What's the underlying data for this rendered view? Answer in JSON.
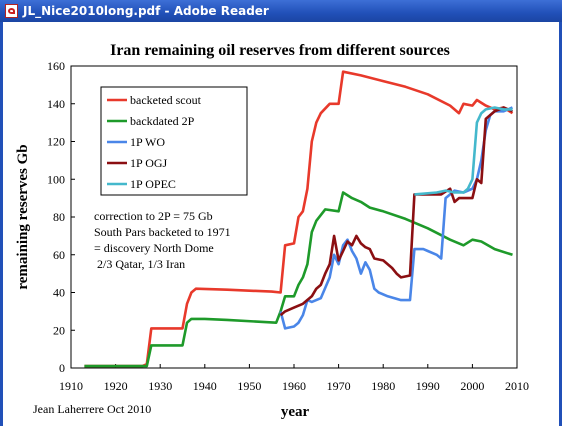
{
  "window": {
    "title": "JL_Nice2010long.pdf - Adobe Reader",
    "icon": "pdf-document-icon"
  },
  "chart_data": {
    "type": "line",
    "title": "Iran remaining oil reserves from different sources",
    "xlabel": "year",
    "ylabel": "remaining reserves Gb",
    "xlim": [
      1910,
      2010
    ],
    "ylim": [
      0,
      160
    ],
    "xticks": [
      1910,
      1920,
      1930,
      1940,
      1950,
      1960,
      1970,
      1980,
      1990,
      2000,
      2010
    ],
    "yticks": [
      0,
      20,
      40,
      60,
      80,
      100,
      120,
      140,
      160
    ],
    "grid": false,
    "legend_position": "top-left",
    "annotation": [
      "correction to 2P = 75 Gb",
      "South Pars backeted to 1971",
      "= discovery North Dome",
      " 2/3 Qatar, 1/3 Iran"
    ],
    "credit": "Jean Laherrere Oct 2010",
    "series": [
      {
        "name": "backeted scout",
        "color": "#e8392b",
        "points": [
          [
            1913,
            1
          ],
          [
            1926,
            1
          ],
          [
            1927,
            2
          ],
          [
            1928,
            21
          ],
          [
            1935,
            21
          ],
          [
            1936,
            34
          ],
          [
            1937,
            40
          ],
          [
            1938,
            42
          ],
          [
            1945,
            41.5
          ],
          [
            1955,
            40.5
          ],
          [
            1957,
            40
          ],
          [
            1958,
            65
          ],
          [
            1960,
            66
          ],
          [
            1961,
            80
          ],
          [
            1962,
            83
          ],
          [
            1963,
            95
          ],
          [
            1964,
            120
          ],
          [
            1965,
            130
          ],
          [
            1966,
            135
          ],
          [
            1968,
            140
          ],
          [
            1970,
            140
          ],
          [
            1971,
            157
          ],
          [
            1975,
            155
          ],
          [
            1980,
            152
          ],
          [
            1985,
            149
          ],
          [
            1990,
            145
          ],
          [
            1995,
            139
          ],
          [
            1997,
            135
          ],
          [
            1998,
            140
          ],
          [
            2000,
            139
          ],
          [
            2001,
            142
          ],
          [
            2003,
            139
          ],
          [
            2005,
            137
          ],
          [
            2007,
            138
          ],
          [
            2009,
            135
          ]
        ]
      },
      {
        "name": "backdated 2P",
        "color": "#1e9a2a",
        "points": [
          [
            1913,
            1
          ],
          [
            1927,
            1
          ],
          [
            1928,
            12
          ],
          [
            1935,
            12
          ],
          [
            1936,
            24
          ],
          [
            1937,
            26
          ],
          [
            1940,
            26
          ],
          [
            1945,
            25.5
          ],
          [
            1956,
            24
          ],
          [
            1957,
            30
          ],
          [
            1958,
            38
          ],
          [
            1960,
            38
          ],
          [
            1961,
            44
          ],
          [
            1962,
            48
          ],
          [
            1963,
            55
          ],
          [
            1964,
            72
          ],
          [
            1965,
            78
          ],
          [
            1967,
            84
          ],
          [
            1970,
            83
          ],
          [
            1971,
            93
          ],
          [
            1973,
            90
          ],
          [
            1975,
            88
          ],
          [
            1977,
            85
          ],
          [
            1980,
            83
          ],
          [
            1985,
            79
          ],
          [
            1990,
            74
          ],
          [
            1995,
            68
          ],
          [
            1998,
            65
          ],
          [
            2000,
            68
          ],
          [
            2002,
            67
          ],
          [
            2005,
            63
          ],
          [
            2009,
            60
          ]
        ]
      },
      {
        "name": "1P WO",
        "color": "#4a86e8",
        "points": [
          [
            1957,
            30
          ],
          [
            1958,
            21
          ],
          [
            1960,
            22
          ],
          [
            1961,
            24
          ],
          [
            1962,
            28
          ],
          [
            1963,
            36
          ],
          [
            1964,
            35
          ],
          [
            1966,
            37
          ],
          [
            1968,
            48
          ],
          [
            1969,
            60
          ],
          [
            1970,
            55
          ],
          [
            1971,
            65
          ],
          [
            1972,
            68
          ],
          [
            1973,
            62
          ],
          [
            1974,
            58
          ],
          [
            1975,
            50
          ],
          [
            1976,
            56
          ],
          [
            1977,
            52
          ],
          [
            1978,
            42
          ],
          [
            1979,
            40
          ],
          [
            1981,
            38
          ],
          [
            1984,
            36
          ],
          [
            1986,
            36
          ],
          [
            1987,
            63
          ],
          [
            1989,
            63
          ],
          [
            1990,
            62
          ],
          [
            1992,
            60
          ],
          [
            1993,
            58
          ],
          [
            1994,
            90
          ],
          [
            1996,
            94
          ],
          [
            1998,
            93
          ],
          [
            2000,
            95
          ],
          [
            2001,
            100
          ],
          [
            2002,
            110
          ],
          [
            2003,
            126
          ],
          [
            2004,
            134
          ],
          [
            2005,
            136
          ],
          [
            2007,
            136
          ],
          [
            2009,
            138
          ]
        ]
      },
      {
        "name": "1P OGJ",
        "color": "#8b0f12",
        "points": [
          [
            1957,
            28
          ],
          [
            1958,
            30
          ],
          [
            1960,
            32
          ],
          [
            1962,
            34
          ],
          [
            1964,
            38
          ],
          [
            1965,
            42
          ],
          [
            1966,
            44
          ],
          [
            1967,
            50
          ],
          [
            1968,
            55
          ],
          [
            1969,
            70
          ],
          [
            1970,
            57
          ],
          [
            1971,
            62
          ],
          [
            1972,
            67
          ],
          [
            1973,
            65
          ],
          [
            1974,
            70
          ],
          [
            1975,
            66
          ],
          [
            1976,
            64
          ],
          [
            1977,
            63
          ],
          [
            1978,
            58
          ],
          [
            1980,
            57
          ],
          [
            1982,
            53
          ],
          [
            1983,
            50
          ],
          [
            1984,
            48
          ],
          [
            1986,
            49
          ],
          [
            1987,
            92
          ],
          [
            1993,
            92
          ],
          [
            1995,
            95
          ],
          [
            1996,
            88
          ],
          [
            1997,
            90
          ],
          [
            2000,
            90
          ],
          [
            2001,
            100
          ],
          [
            2002,
            98
          ],
          [
            2003,
            132
          ],
          [
            2005,
            136
          ],
          [
            2007,
            138
          ],
          [
            2009,
            136
          ]
        ]
      },
      {
        "name": "1P OPEC",
        "color": "#44b8cc",
        "points": [
          [
            1987,
            92
          ],
          [
            1992,
            93
          ],
          [
            1994,
            94
          ],
          [
            1996,
            93
          ],
          [
            1998,
            93
          ],
          [
            1999,
            95
          ],
          [
            2000,
            100
          ],
          [
            2001,
            130
          ],
          [
            2002,
            135
          ],
          [
            2003,
            137
          ],
          [
            2005,
            138
          ],
          [
            2007,
            137
          ],
          [
            2009,
            137
          ]
        ]
      }
    ]
  }
}
